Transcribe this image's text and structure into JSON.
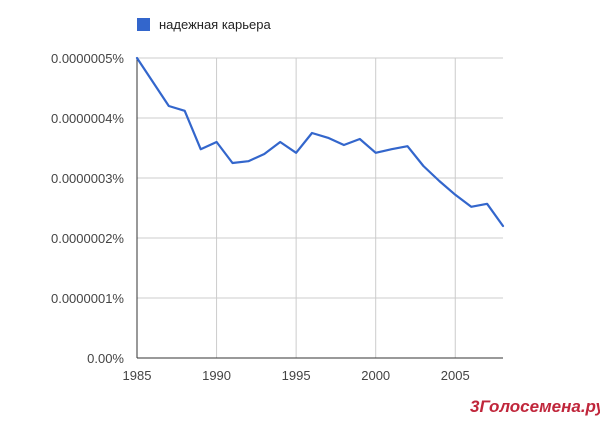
{
  "chart_data": {
    "type": "line",
    "title": "",
    "xlabel": "",
    "ylabel": "",
    "xlim": [
      1985,
      2008
    ],
    "ylim": [
      0,
      5e-07
    ],
    "grid": true,
    "legend_position": "top-left",
    "x_ticks": [
      1985,
      1990,
      1995,
      2000,
      2005
    ],
    "x_tick_labels": [
      "1985",
      "1990",
      "1995",
      "2000",
      "2005"
    ],
    "y_ticks": [
      0,
      1e-07,
      2e-07,
      3e-07,
      4e-07,
      5e-07
    ],
    "y_tick_labels": [
      "0.00%",
      "0.0000001%",
      "0.0000002%",
      "0.0000003%",
      "0.0000004%",
      "0.0000005%"
    ],
    "series": [
      {
        "name": "надежная карьера",
        "color": "#3366cc",
        "x": [
          1985,
          1986,
          1987,
          1988,
          1989,
          1990,
          1991,
          1992,
          1993,
          1994,
          1995,
          1996,
          1997,
          1998,
          1999,
          2000,
          2001,
          2002,
          2003,
          2004,
          2005,
          2006,
          2007,
          2008
        ],
        "y": [
          5e-07,
          4.6e-07,
          4.2e-07,
          4.12e-07,
          3.48e-07,
          3.6e-07,
          3.25e-07,
          3.28e-07,
          3.4e-07,
          3.6e-07,
          3.42e-07,
          3.75e-07,
          3.67e-07,
          3.55e-07,
          3.65e-07,
          3.42e-07,
          3.48e-07,
          3.53e-07,
          3.2e-07,
          2.95e-07,
          2.72e-07,
          2.52e-07,
          2.57e-07,
          2.2e-07
        ]
      }
    ]
  },
  "legend": {
    "color": "#3366cc",
    "label": "надежная карьера"
  },
  "watermark": {
    "prefix": "3",
    "text": "Голосемена.ру",
    "color": "#c0263b"
  }
}
